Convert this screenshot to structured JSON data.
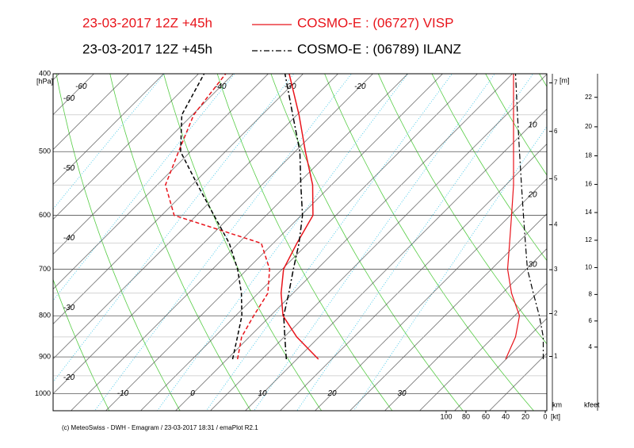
{
  "chart_data": {
    "type": "emagram",
    "run": "23-03-2017  12Z +45h",
    "stations": [
      {
        "name": "COSMO-E : (06727)  VISP",
        "color": "#e8141b",
        "line": "solid",
        "temperature": [
          13.1,
          6.8,
          1.8,
          -1.7,
          -4.8,
          -6.6,
          -8.3,
          -12.7,
          -18.5,
          -24.7,
          -32.0
        ],
        "dewpoint": [
          1.5,
          -1.1,
          -2.4,
          -3.6,
          -6.8,
          -11.7,
          -28.2,
          -33.8,
          -36.7,
          -39.8,
          -41.1
        ],
        "wind_speed": [
          40,
          30,
          26,
          34,
          38,
          36,
          34,
          32,
          32,
          32,
          32
        ]
      },
      {
        "name": "COSMO-E : (06789)  ILANZ",
        "color": "#000000",
        "line": "dashdot",
        "temperature": [
          8.5,
          5.1,
          1.9,
          -0.6,
          -3.4,
          -6.3,
          -9.8,
          -14.4,
          -19.3,
          -25.6,
          -32.6
        ],
        "dewpoint": [
          0.8,
          -1.7,
          -4.1,
          -7.4,
          -11.4,
          -16.3,
          -22.5,
          -29.2,
          -36.4,
          -41.5,
          -44.2
        ],
        "wind_speed": [
          2,
          2,
          6,
          12,
          18,
          20,
          22,
          24,
          26,
          28,
          30
        ]
      }
    ],
    "pressure": [
      906,
      850,
      800,
      750,
      700,
      650,
      600,
      550,
      500,
      450,
      400
    ],
    "y_label": "[hPa]",
    "log_y": true,
    "ylim": [
      400,
      1050
    ],
    "yticks": [
      400,
      500,
      600,
      700,
      800,
      900,
      1000
    ],
    "yminor": [
      450,
      550,
      650,
      750,
      850,
      950,
      1050
    ],
    "xlim": [
      -20,
      50
    ],
    "isotherms": [
      -110,
      -105,
      -100,
      -95,
      -90,
      -85,
      -80,
      -75,
      -70,
      -65,
      -60,
      -55,
      -50,
      -45,
      -40,
      -35,
      -30,
      -25,
      -20,
      -15,
      -10,
      -5,
      0,
      5,
      10,
      15,
      20,
      25,
      30,
      35,
      40,
      45
    ],
    "isotherm_labels": [
      -60,
      -50,
      -40,
      -30,
      -20,
      -10,
      0,
      10,
      20,
      30
    ],
    "isotherm_labels_top": [
      -60,
      -40,
      -30,
      -20
    ],
    "speed_lim": [
      0,
      100
    ],
    "speed_ticks": [
      100,
      80,
      60,
      40,
      20,
      0
    ],
    "speed_unit": "[kt]",
    "height_axis": {
      "label_top": "[m]",
      "label": "km",
      "ticks": [
        1,
        2,
        3,
        4,
        5,
        6,
        7
      ]
    },
    "feet_axis": {
      "label": "kfeet",
      "ticks": [
        4,
        6,
        8,
        10,
        12,
        14,
        16,
        18,
        20,
        22
      ]
    },
    "annotations": [
      "10",
      "20",
      "30"
    ],
    "footer": "(c) MeteoSwiss - DWH - Emagram / 23-03-2017 18:31 / emaPlot R2.1"
  }
}
